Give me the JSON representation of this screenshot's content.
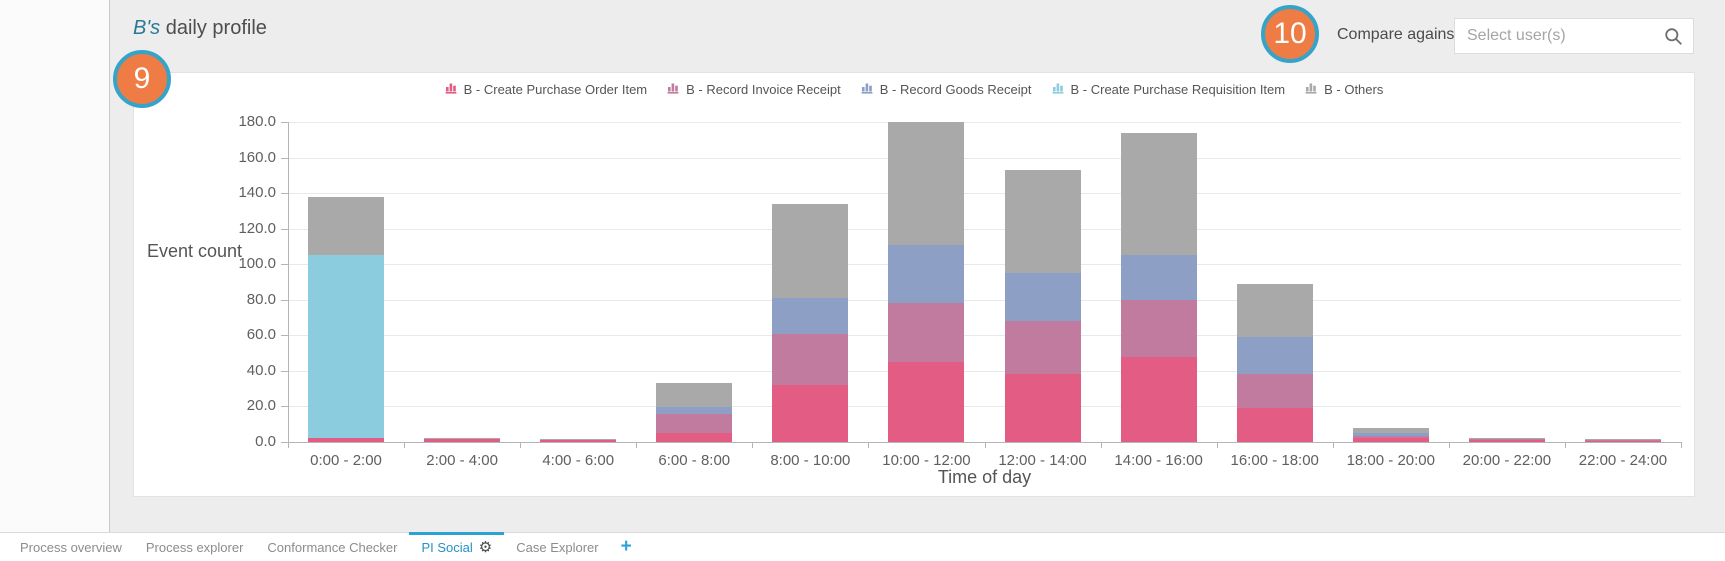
{
  "header": {
    "title_user": "B's",
    "title_rest": "daily profile",
    "badge_9": "9",
    "badge_10": "10",
    "compare_label": "Compare against",
    "select_placeholder": "Select user(s)"
  },
  "colors": {
    "badge_orange": "#ee7c44",
    "badge_ring_teal": "#35a4c9",
    "title_user_teal": "#2c7893",
    "active_tab_blue": "#2492c6"
  },
  "chart_data": {
    "type": "bar",
    "stacked": true,
    "xlabel": "Time of day",
    "ylabel": "Event count",
    "ylim": [
      0,
      180
    ],
    "yticks": [
      0,
      20,
      40,
      60,
      80,
      100,
      120,
      140,
      160,
      180
    ],
    "ytick_labels": [
      "0.0",
      "20.0",
      "40.0",
      "60.0",
      "80.0",
      "100.0",
      "120.0",
      "140.0",
      "160.0",
      "180.0"
    ],
    "grid": true,
    "legend_position": "top",
    "categories": [
      "0:00 - 2:00",
      "2:00 - 4:00",
      "4:00 - 6:00",
      "6:00 - 8:00",
      "8:00 - 10:00",
      "10:00 - 12:00",
      "12:00 - 14:00",
      "14:00 - 16:00",
      "16:00 - 18:00",
      "18:00 - 20:00",
      "20:00 - 22:00",
      "22:00 - 24:00"
    ],
    "series": [
      {
        "name": "B - Create Purchase Order Item",
        "color": "#e25c84",
        "values": [
          2,
          1.5,
          1,
          5,
          32,
          45,
          38,
          48,
          19,
          2.5,
          1.5,
          1
        ]
      },
      {
        "name": "B - Record Invoice Receipt",
        "color": "#c17b9e",
        "values": [
          0,
          0.5,
          0.5,
          11,
          29,
          33,
          30,
          32,
          19,
          1,
          0.3,
          0.3
        ]
      },
      {
        "name": "B - Record Goods Receipt",
        "color": "#8d9fc4",
        "values": [
          0,
          0,
          0,
          3.5,
          20,
          33,
          27,
          25,
          21,
          1.5,
          0.2,
          0.2
        ]
      },
      {
        "name": "B - Create Purchase Requisition Item",
        "color": "#8bccdf",
        "values": [
          103,
          0,
          0,
          0,
          0,
          0,
          0,
          0,
          0,
          0,
          0,
          0
        ]
      },
      {
        "name": "B - Others",
        "color": "#a9a9a9",
        "values": [
          33,
          0.3,
          0.2,
          13.5,
          53,
          69,
          58,
          69,
          30,
          3,
          0.5,
          0.3
        ]
      }
    ]
  },
  "tabs": {
    "items": [
      {
        "label": "Process overview",
        "active": false,
        "has_gear": false
      },
      {
        "label": "Process explorer",
        "active": false,
        "has_gear": false
      },
      {
        "label": "Conformance Checker",
        "active": false,
        "has_gear": false
      },
      {
        "label": "PI Social",
        "active": true,
        "has_gear": true
      },
      {
        "label": "Case Explorer",
        "active": false,
        "has_gear": false
      }
    ],
    "add_label": "+"
  }
}
